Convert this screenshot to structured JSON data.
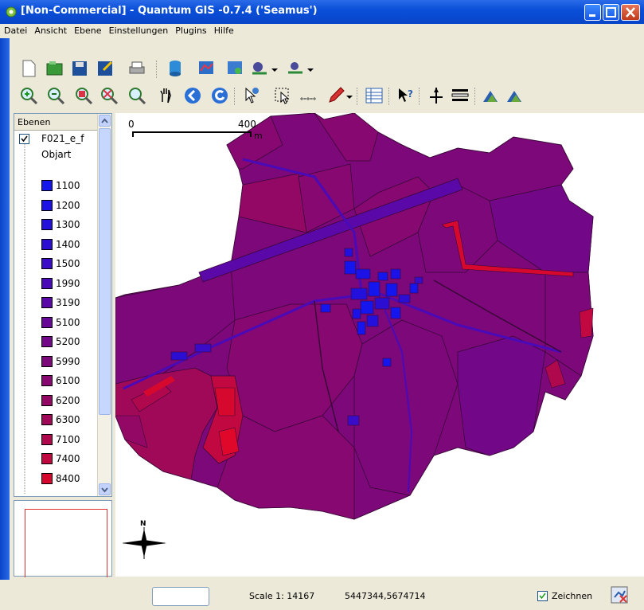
{
  "window": {
    "title": "[Non-Commercial] - Quantum GIS -0.7.4 ('Seamus')",
    "minimize_icon": "minimize-icon",
    "maximize_icon": "maximize-icon",
    "close_icon": "close-icon"
  },
  "menu": [
    "Datei",
    "Ansicht",
    "Ebene",
    "Einstellungen",
    "Plugins",
    "Hilfe"
  ],
  "layers_panel": {
    "header": "Ebenen",
    "layer_name": "F021_e_f",
    "field_name": "Objart",
    "legend": [
      {
        "label": "1100",
        "color": "#1515ee"
      },
      {
        "label": "1200",
        "color": "#1c12e6"
      },
      {
        "label": "1300",
        "color": "#2410dd"
      },
      {
        "label": "1400",
        "color": "#2c0ed3"
      },
      {
        "label": "1500",
        "color": "#3a0cc8"
      },
      {
        "label": "1990",
        "color": "#4a0ab8"
      },
      {
        "label": "3190",
        "color": "#5a08a8"
      },
      {
        "label": "5100",
        "color": "#680896"
      },
      {
        "label": "5200",
        "color": "#720888"
      },
      {
        "label": "5990",
        "color": "#7c087a"
      },
      {
        "label": "6100",
        "color": "#860870"
      },
      {
        "label": "6200",
        "color": "#920864"
      },
      {
        "label": "6300",
        "color": "#a00858"
      },
      {
        "label": "7100",
        "color": "#b0084c"
      },
      {
        "label": "7400",
        "color": "#c20840"
      },
      {
        "label": "8400",
        "color": "#d6082e"
      }
    ]
  },
  "map": {
    "scalebar_start": "0",
    "scalebar_end": "400",
    "scalebar_unit": "m",
    "north_label": "N"
  },
  "status": {
    "scale": "Scale 1: 14167",
    "coordinates": "5447344,5674714",
    "render_label": "Zeichnen"
  }
}
